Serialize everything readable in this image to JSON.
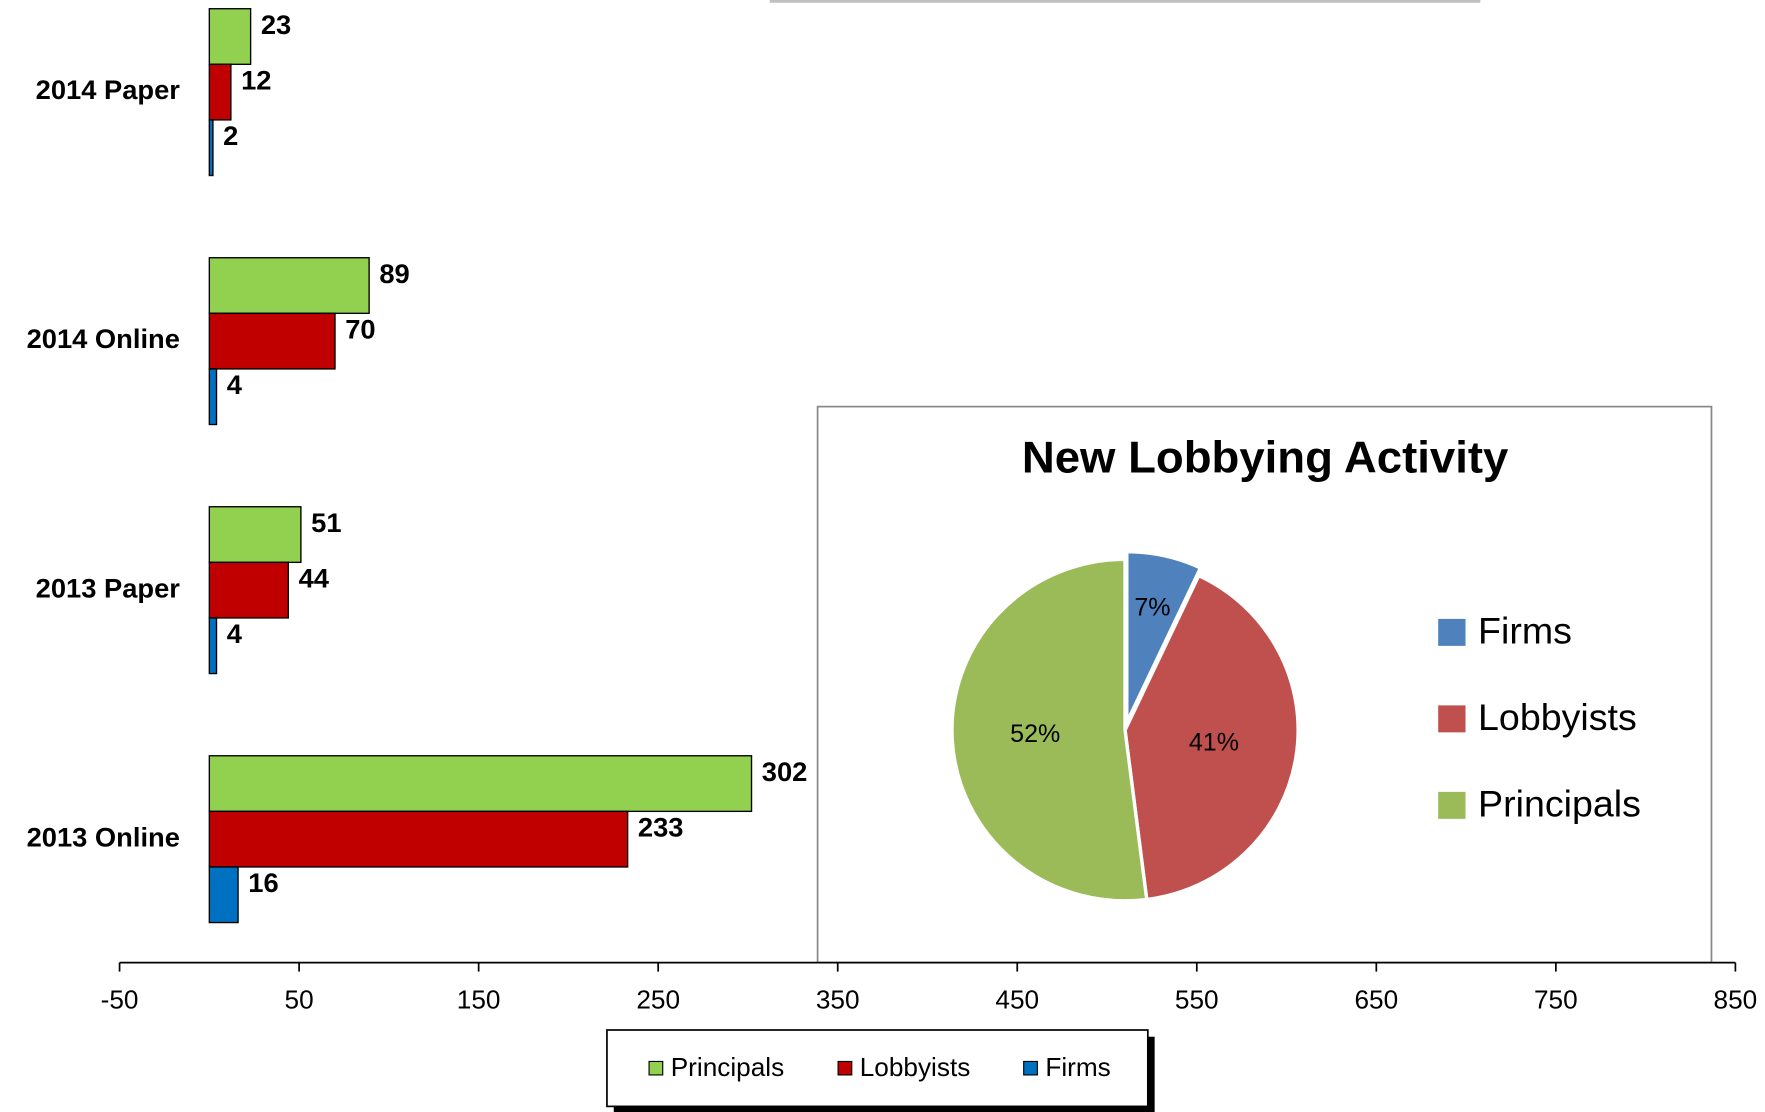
{
  "chart_data": [
    {
      "type": "bar",
      "categories": [
        "2014 Paper",
        "2014 Online",
        "2013 Paper",
        "2013 Online"
      ],
      "series": [
        {
          "name": "Principals",
          "color": "#92d050",
          "values": [
            23,
            89,
            51,
            302
          ]
        },
        {
          "name": "Lobbyists",
          "color": "#c00000",
          "values": [
            12,
            70,
            44,
            233
          ]
        },
        {
          "name": "Firms",
          "color": "#0070c0",
          "values": [
            2,
            4,
            4,
            16
          ]
        }
      ],
      "xlim": [
        -50,
        850
      ],
      "xticks": [
        -50,
        50,
        150,
        250,
        350,
        450,
        550,
        650,
        750,
        850
      ],
      "legend": "bottom",
      "grid": false
    },
    {
      "type": "pie",
      "title": "New Lobbying Activity",
      "categories": [
        "Firms",
        "Lobbyists",
        "Principals"
      ],
      "values": [
        7,
        41,
        52
      ],
      "value_labels": [
        "7%",
        "41%",
        "52%"
      ],
      "colors": [
        "#4f81bd",
        "#c0504d",
        "#9bbb59"
      ],
      "legend": "right"
    }
  ]
}
